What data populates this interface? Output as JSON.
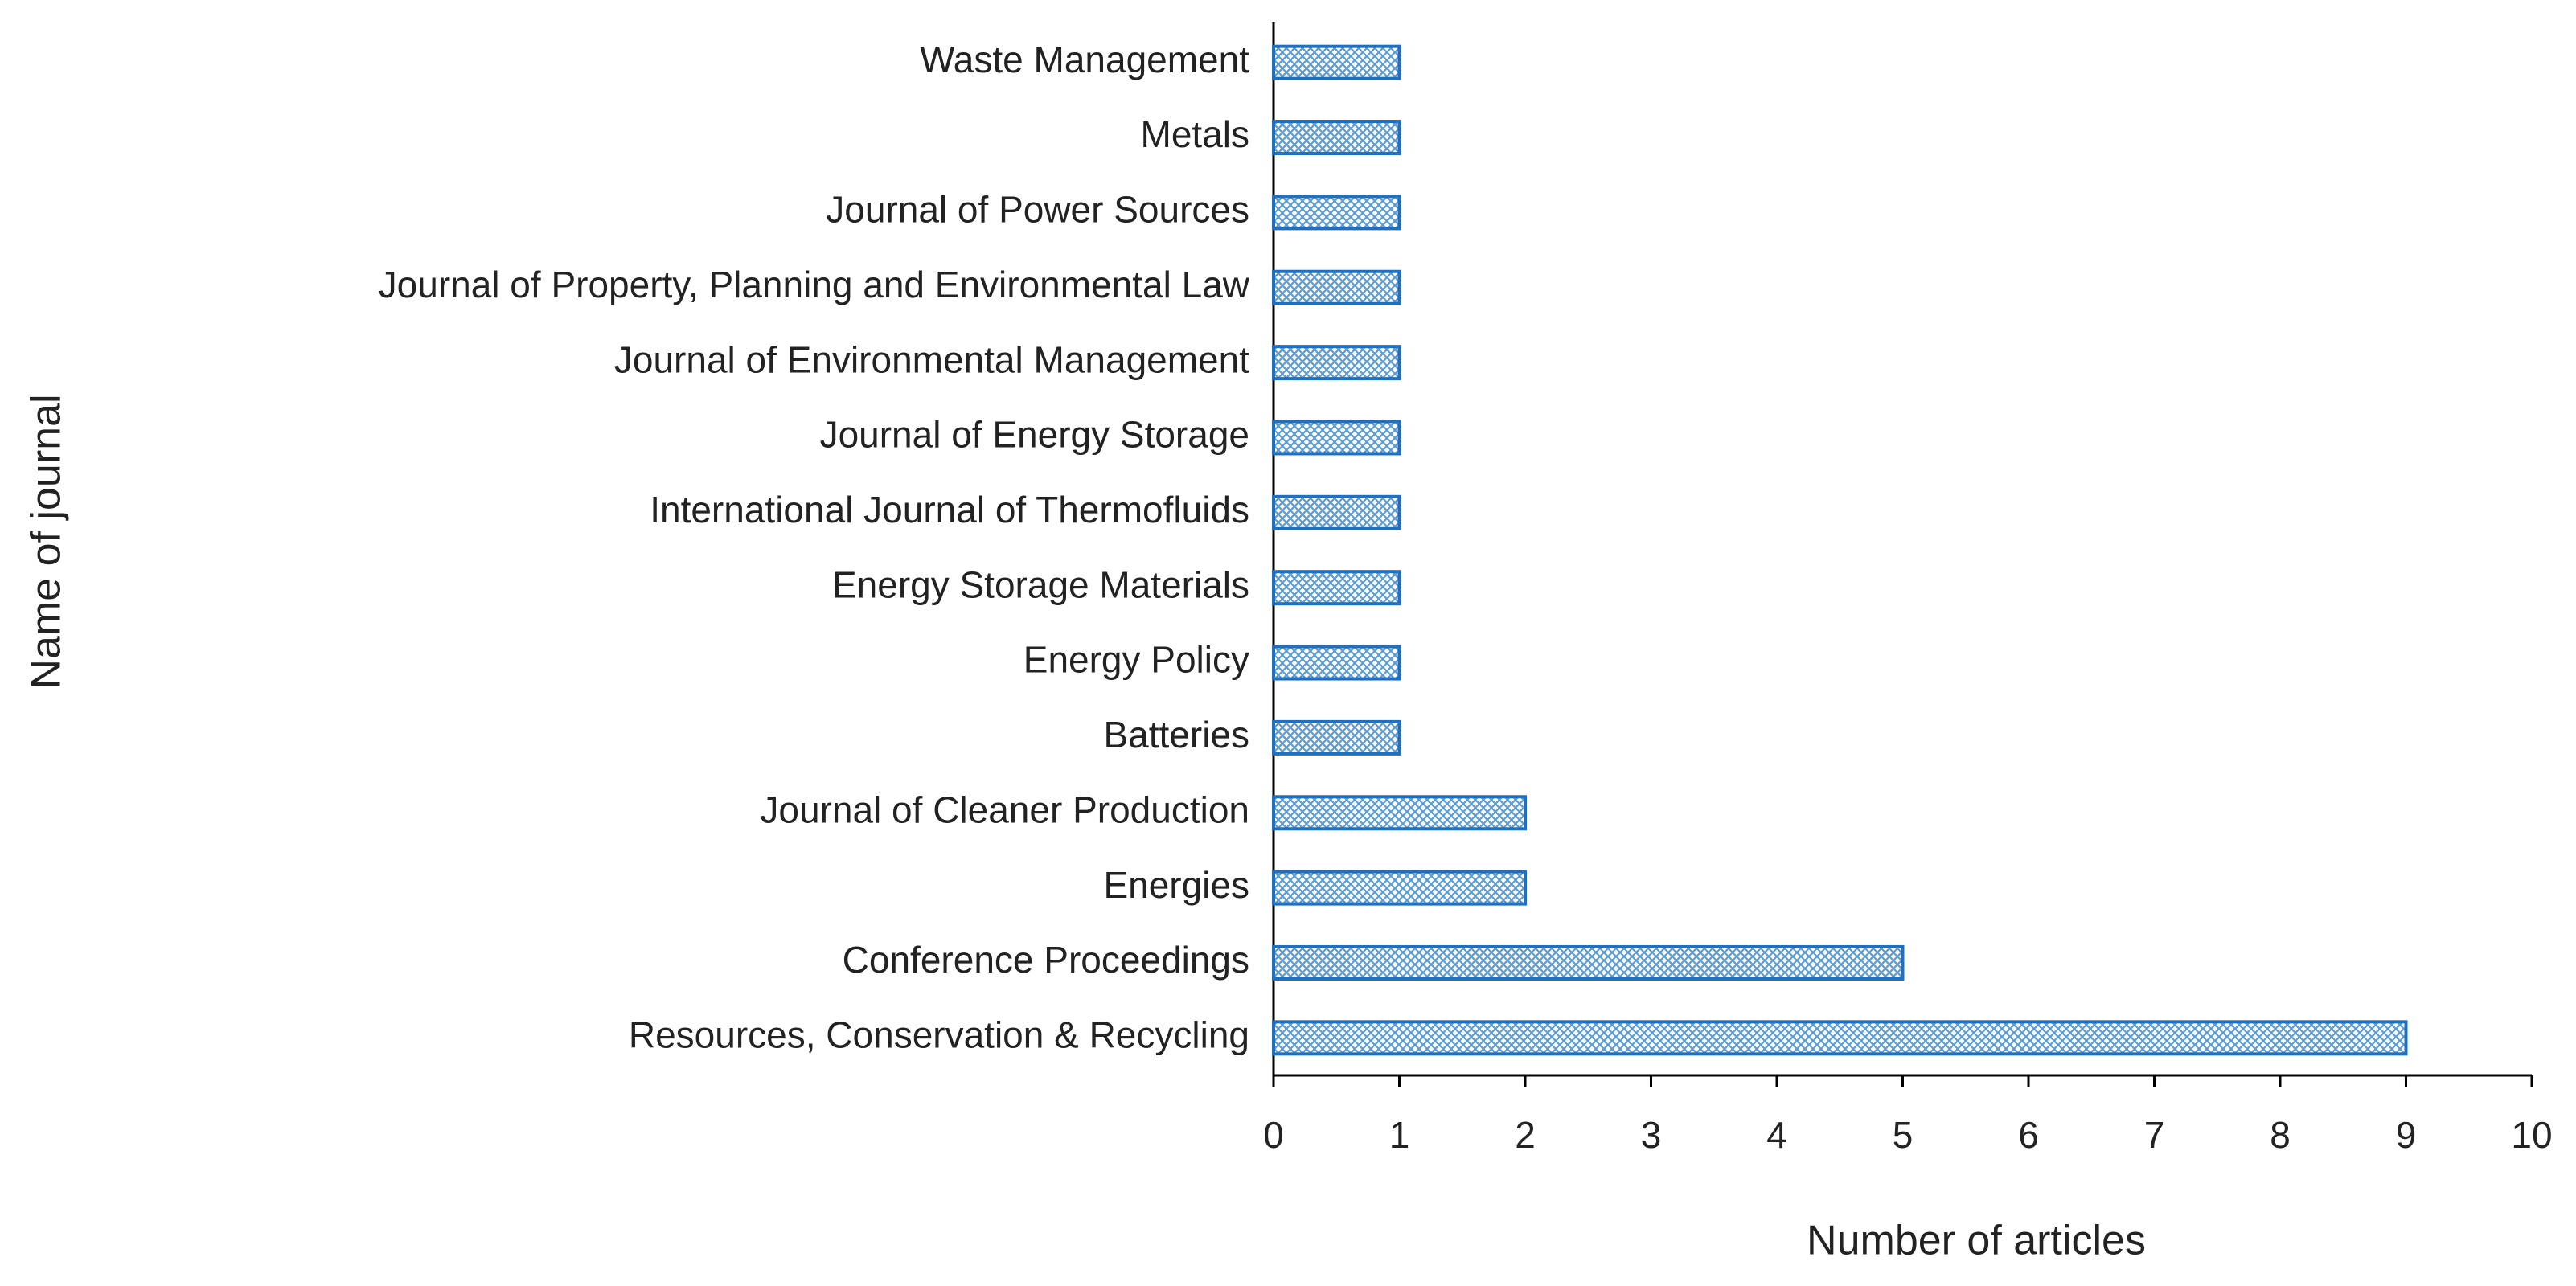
{
  "chart_data": {
    "type": "barh",
    "xlabel": "Number of articles",
    "ylabel": "Name of journal",
    "categories": [
      "Waste Management",
      "Metals",
      "Journal of Power Sources",
      "Journal of Property, Planning and Environmental Law",
      "Journal of Environmental Management",
      "Journal of Energy Storage",
      "International Journal of Thermofluids",
      "Energy Storage Materials",
      "Energy Policy",
      "Batteries",
      "Journal of Cleaner Production",
      "Energies",
      "Conference Proceedings",
      "Resources, Conservation & Recycling"
    ],
    "values": [
      1,
      1,
      1,
      1,
      1,
      1,
      1,
      1,
      1,
      1,
      2,
      2,
      5,
      9
    ],
    "color": "#1f70c1",
    "xlim": [
      0,
      10
    ],
    "xticks": [
      0,
      1,
      2,
      3,
      4,
      5,
      6,
      7,
      8,
      9,
      10
    ],
    "grid": false
  }
}
